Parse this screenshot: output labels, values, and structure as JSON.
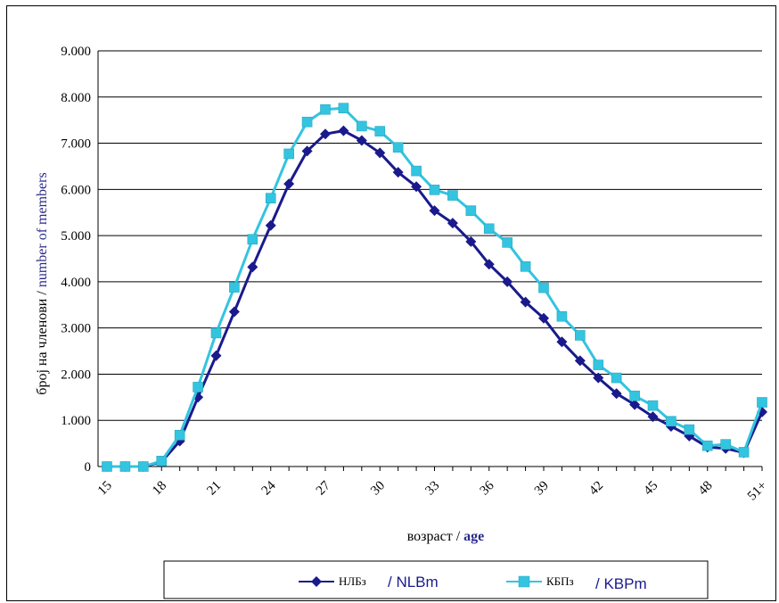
{
  "chart_data": {
    "type": "line",
    "x_ticks": [
      "15",
      "18",
      "21",
      "24",
      "27",
      "30",
      "33",
      "36",
      "39",
      "42",
      "45",
      "48",
      "51+"
    ],
    "x": [
      15,
      16,
      17,
      18,
      19,
      20,
      21,
      22,
      23,
      24,
      25,
      26,
      27,
      28,
      29,
      30,
      31,
      32,
      33,
      34,
      35,
      36,
      37,
      38,
      39,
      40,
      41,
      42,
      43,
      44,
      45,
      46,
      47,
      48,
      49,
      50,
      51
    ],
    "yticks": [
      "0",
      "1.000",
      "2.000",
      "3.000",
      "4.000",
      "5.000",
      "6.000",
      "7.000",
      "8.000",
      "9.000"
    ],
    "ylim": [
      0,
      9000
    ],
    "ylabel_a": "број на членови /",
    "ylabel_b": "number of members",
    "xlabel_a": "возраст /",
    "xlabel_b": "age",
    "grid": true,
    "legend_position": "bottom",
    "series": [
      {
        "name_a": "НЛБз",
        "name_b": "/ NLBm",
        "color": "#1a1a8c",
        "marker": "diamond",
        "values": [
          0,
          0,
          0,
          100,
          550,
          1500,
          2400,
          3350,
          4320,
          5220,
          6120,
          6830,
          7200,
          7270,
          7060,
          6790,
          6370,
          6060,
          5540,
          5270,
          4870,
          4380,
          4000,
          3560,
          3210,
          2700,
          2290,
          1920,
          1580,
          1340,
          1080,
          870,
          660,
          420,
          390,
          300,
          1180
        ]
      },
      {
        "name_a": "КБПз",
        "name_b": "/ KBPm",
        "color": "#33c4e0",
        "marker": "square",
        "values": [
          0,
          0,
          0,
          120,
          680,
          1720,
          2890,
          3880,
          4920,
          5810,
          6770,
          7460,
          7730,
          7760,
          7370,
          7260,
          6910,
          6400,
          5990,
          5870,
          5540,
          5150,
          4850,
          4330,
          3870,
          3250,
          2840,
          2200,
          1920,
          1530,
          1320,
          980,
          800,
          450,
          480,
          310,
          1390
        ]
      }
    ]
  }
}
